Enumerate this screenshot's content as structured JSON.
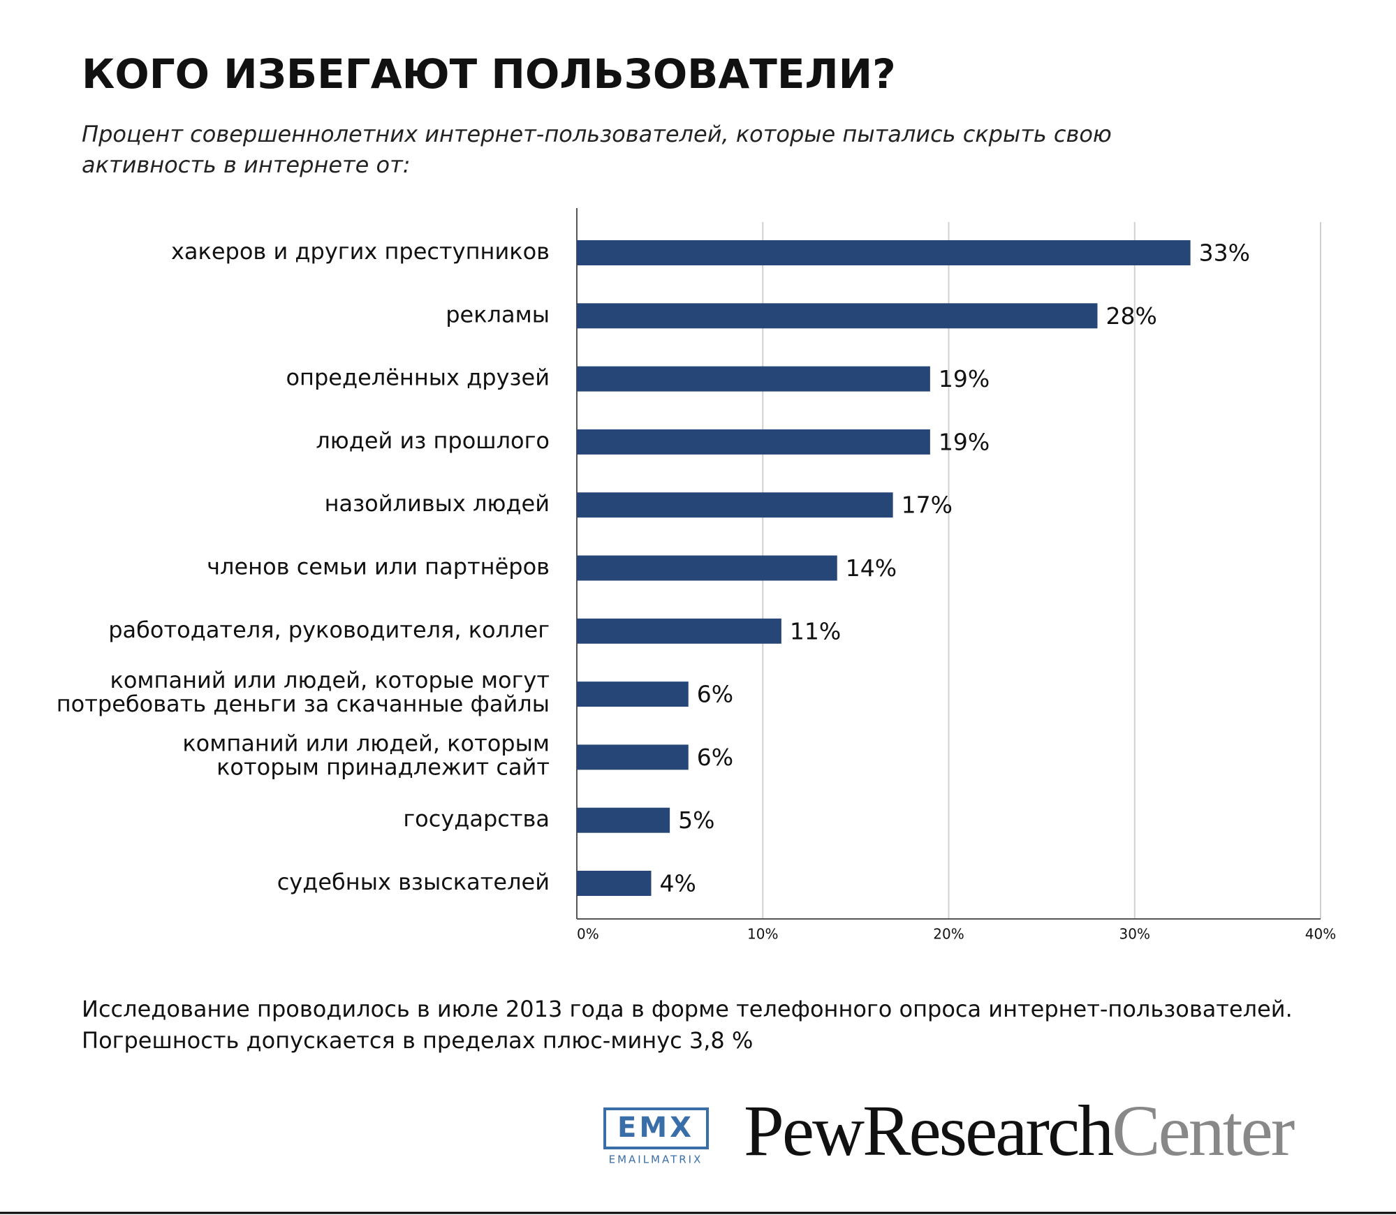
{
  "chart_data": {
    "type": "bar",
    "orientation": "horizontal",
    "title": "КОГО ИЗБЕГАЮТ ПОЛЬЗОВАТЕЛИ?",
    "subtitle": "Процент совершеннолетних интернет-пользователей, которые пытались скрыть свою активность в интернете от:",
    "categories": [
      "хакеров и других преступников",
      "рекламы",
      "определённых друзей",
      "людей из прошлого",
      "назойливых людей",
      "членов семьи или партнёров",
      "работодателя, руководителя, коллег",
      "компаний или людей, которые могут\nпотребовать деньги за скачанные файлы",
      "компаний или людей, которым\nкоторым принадлежит сайт",
      "государства",
      "судебных взыскателей"
    ],
    "values": [
      33,
      28,
      19,
      19,
      17,
      14,
      11,
      6,
      6,
      5,
      4
    ],
    "value_labels": [
      "33%",
      "28%",
      "19%",
      "19%",
      "17%",
      "14%",
      "11%",
      "6%",
      "6%",
      "5%",
      "4%"
    ],
    "color": "#264677",
    "xlim": [
      0,
      40
    ],
    "xticks": [
      {
        "value": 0,
        "label": "0%"
      },
      {
        "value": 10,
        "label": "10%"
      },
      {
        "value": 20,
        "label": "20%"
      },
      {
        "value": 30,
        "label": "30%"
      },
      {
        "value": 40,
        "label": "40%"
      }
    ],
    "grid": true,
    "note": [
      "Исследование проводилось в июле 2013 года в форме телефонного опроса интернет-пользователей.",
      "Погрешность допускается в пределах плюс-минус 3,8 %"
    ],
    "logo_emx": {
      "mark": "EMX",
      "name": "EMAILMATRIX"
    },
    "logo_pew": {
      "dark": "PewResearch",
      "light": "Center"
    }
  }
}
